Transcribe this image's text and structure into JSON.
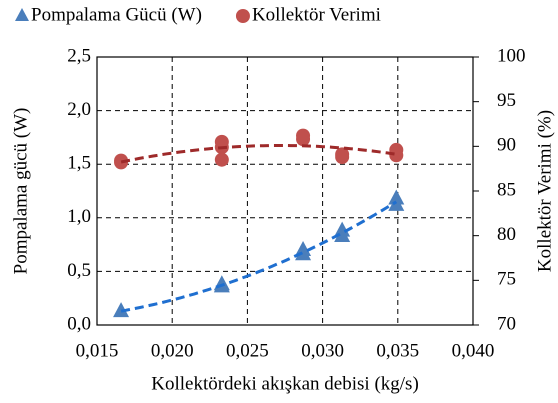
{
  "chart_data": {
    "type": "scatter",
    "xlabel": "Kollektördeki akışkan debisi  (kg/s)",
    "ylabel": "Pompalama gücü (W)",
    "y2label": "Kollektör Verimi (%)",
    "xlim": [
      0.015,
      0.04
    ],
    "xticks": [
      {
        "value": 0.015,
        "label": "0,015"
      },
      {
        "value": 0.02,
        "label": "0,020"
      },
      {
        "value": 0.025,
        "label": "0,025"
      },
      {
        "value": 0.03,
        "label": "0,030"
      },
      {
        "value": 0.035,
        "label": "0,035"
      },
      {
        "value": 0.04,
        "label": "0,040"
      }
    ],
    "ylim": [
      0,
      2.5
    ],
    "yticks": [
      {
        "value": 0,
        "label": "0,0"
      },
      {
        "value": 0.5,
        "label": "0,5"
      },
      {
        "value": 1,
        "label": "1,0"
      },
      {
        "value": 1.5,
        "label": "1,5"
      },
      {
        "value": 2,
        "label": "2,0"
      },
      {
        "value": 2.5,
        "label": "2,5"
      }
    ],
    "y2lim": [
      70,
      100
    ],
    "y2ticks": [
      70,
      75,
      80,
      85,
      90,
      95,
      100
    ],
    "grid": true,
    "legend": "top",
    "trendline": "polynomial",
    "trendline_order": 2,
    "series": [
      {
        "name": "Pompalama Gücü (W)",
        "marker": "triangle",
        "color": "#4a7ebb",
        "line_color": "#1f6fd0",
        "x": [
          0.0166,
          0.0233,
          0.0233,
          0.0287,
          0.0287,
          0.0313,
          0.0313,
          0.0349,
          0.0349
        ],
        "values": [
          0.13,
          0.36,
          0.38,
          0.66,
          0.7,
          0.83,
          0.88,
          1.12,
          1.18
        ]
      },
      {
        "name": "Kollektör Verimi",
        "marker": "circle",
        "color": "#c0504d",
        "line_color": "#9e2a2a",
        "axis": "y2",
        "x": [
          0.0166,
          0.0166,
          0.0233,
          0.0233,
          0.0233,
          0.0287,
          0.0287,
          0.0313,
          0.0313,
          0.0349,
          0.0349
        ],
        "values": [
          88.2,
          88.4,
          88.5,
          89.9,
          90.5,
          90.8,
          91.2,
          88.8,
          89.1,
          89.0,
          89.6
        ]
      }
    ]
  }
}
